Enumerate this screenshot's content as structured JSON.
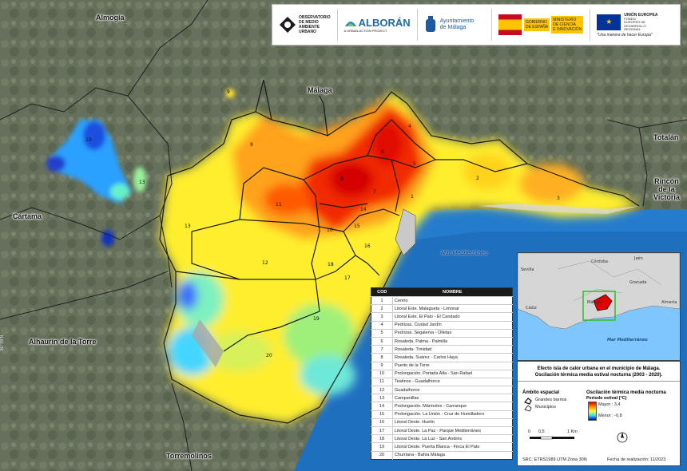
{
  "places": {
    "almogia": "Almogía",
    "malaga": "Málaga",
    "totalan": "Totalán",
    "rincon": "Rincón\nde la\nVictoria",
    "cartama": "Cártama",
    "alhaurin": "Alhaurín de la Torre",
    "torremolinos": "Torremolinos",
    "sea": "Mar Mediterráneo"
  },
  "logos": {
    "observatorio": "OBSERVATORIO\nDE MEDIO\nAMBIENTE\nURBANO",
    "alboran": "ALBORÁN",
    "alboran_sub": "A URBAN-ACTION PROJECT",
    "ayuntamiento": "Ayuntamiento\nde Málaga",
    "gobierno": "GOBIERNO\nDE ESPAÑA",
    "ministerio": "MINISTERIO\nDE CIENCIA\nE INNOVACIÓN",
    "ue": "UNIÓN EUROPEA",
    "ue_sub": "FONDO\nEUROPEO DE\nDESARROLLO\nREGIONAL",
    "ue_motto": "\"Una manera de hacer Europa\""
  },
  "districts": {
    "columns": [
      "COD",
      "NOMBRE"
    ],
    "rows": [
      [
        "1",
        "Centro"
      ],
      [
        "2",
        "Litoral Este. Malagueta - Limonar"
      ],
      [
        "3",
        "Litoral Este. El Palo - El Candado"
      ],
      [
        "4",
        "Pedrizas. Ciudad Jardín"
      ],
      [
        "5",
        "Pedrizas. Segalerva - Olletas"
      ],
      [
        "6",
        "Rosaleda. Palma - Palmilla"
      ],
      [
        "7",
        "Rosaleda- Trinidad"
      ],
      [
        "8",
        "Rosaleda. Suárez - Carlos Haya"
      ],
      [
        "9",
        "Puerto de la Torre"
      ],
      [
        "10",
        "Prolongación. Portada Alta - San Rafael"
      ],
      [
        "11",
        "Teatinos - Guadalhorce"
      ],
      [
        "12",
        "Guadalhorce"
      ],
      [
        "13",
        "Campanillas"
      ],
      [
        "14",
        "Prolongación. Mármoles - Carranque"
      ],
      [
        "15",
        "Prolongación. La Unión - Cruz de Humilladero"
      ],
      [
        "16",
        "Litoral Oeste. Huelin"
      ],
      [
        "17",
        "Litoral Oeste. La Paz - Parque Mediterráneo"
      ],
      [
        "18",
        "Litoral Oeste. La Luz - San Andrés"
      ],
      [
        "19",
        "Litoral Oeste. Puerta Blanca - Finca El Pato"
      ],
      [
        "20",
        "Churriana - Bahía Málaga"
      ]
    ]
  },
  "inset": {
    "sevilla": "Sevilla",
    "cordoba": "Córdoba",
    "jaen": "Jaén",
    "granada": "Granada",
    "cadiz": "Cádiz",
    "malaga": "Málaga",
    "almeria": "Almería",
    "sea": "Mar Mediterráneo"
  },
  "legend": {
    "title": "Efecto isla de calor urbana en el municipio de Málaga.\nOscilación térmica media estival nocturna (2003 - 2020).",
    "scope_title": "Ámbito espacial",
    "scope_items": [
      "Grandes barrios",
      "Municipios"
    ],
    "osc_title": "Oscilación térmica media nocturna",
    "period": "Periodo estival (°C)",
    "max": "Mayor : 3,4",
    "min": "Menor : -0,8",
    "scale": [
      "0",
      "0,5",
      "1 Km"
    ],
    "src": "SRC: ETRS1989 UTM Zona 30N",
    "date": "Fecha de realización: 11/2023"
  },
  "side_label": "36°39'N",
  "district_labels": [
    "1",
    "2",
    "3",
    "4",
    "5",
    "6",
    "7",
    "8",
    "9",
    "10",
    "11",
    "12",
    "13",
    "14",
    "15",
    "16",
    "17",
    "18",
    "19",
    "20",
    "9",
    "13",
    "13"
  ],
  "colors": {
    "hot": "#e00000",
    "warm": "#ff8a00",
    "mid": "#ffff33",
    "cool": "#33e0ff",
    "cold": "#0000cc",
    "sea": "#1f6fbf"
  }
}
